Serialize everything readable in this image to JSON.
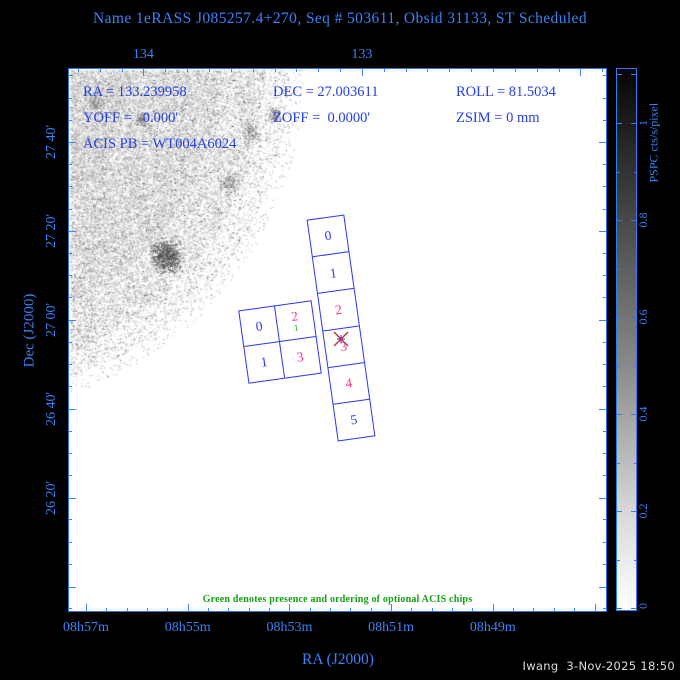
{
  "title": "Name 1eRASS J085257.4+270, Seq # 503611, Obsid 31133, ST Scheduled",
  "info": {
    "ra": "RA = 133.239958",
    "dec": "DEC = 27.003611",
    "roll": "ROLL = 81.5034",
    "yoff": "YOFF =   0.000'",
    "zoff": "ZOFF =  0.0000'",
    "zsim": "ZSIM = 0 mm",
    "acis_pb": "ACIS PB = WT004A6024"
  },
  "axes": {
    "top": {
      "tick_labels": [
        "134",
        "133"
      ]
    },
    "bottom": {
      "title": "RA (J2000)",
      "tick_labels": [
        "08h57m",
        "08h55m",
        "08h53m",
        "08h51m",
        "08h49m"
      ]
    },
    "left": {
      "title": "Dec (J2000)",
      "tick_labels": [
        "27 40'",
        "27 20'",
        "27 00'",
        "26 40'",
        "26 20'"
      ]
    }
  },
  "colorbar": {
    "title": "PSPC cts/s/pixel",
    "tick_labels": [
      "1",
      "0.8",
      "0.6",
      "0.4",
      "0.2",
      "0"
    ]
  },
  "chips": {
    "caption": "Green denotes presence and ordering of optional ACIS chips",
    "acis_i": [
      {
        "id": "0",
        "selected": false
      },
      {
        "id": "2",
        "selected": true,
        "optional_order": "1"
      },
      {
        "id": "1",
        "selected": false
      },
      {
        "id": "3",
        "selected": true
      }
    ],
    "acis_s": [
      {
        "id": "0",
        "selected": false
      },
      {
        "id": "1",
        "selected": false
      },
      {
        "id": "2",
        "selected": true
      },
      {
        "id": "3",
        "selected": true
      },
      {
        "id": "4",
        "selected": true
      },
      {
        "id": "5",
        "selected": false
      }
    ]
  },
  "footer": {
    "credit": "Iwang  3-Nov-2025 18:50"
  },
  "colors": {
    "label_blue": "#3b82f5",
    "info_blue": "#2540e0",
    "chip_line_blue": "#2a35f2",
    "selected_magenta": "#f5308f",
    "optional_green": "#14a014",
    "aimpoint_red": "#c23030",
    "frame_blue": "#2f6fe8",
    "background": "#000000",
    "field_bg": "#ffffff"
  }
}
